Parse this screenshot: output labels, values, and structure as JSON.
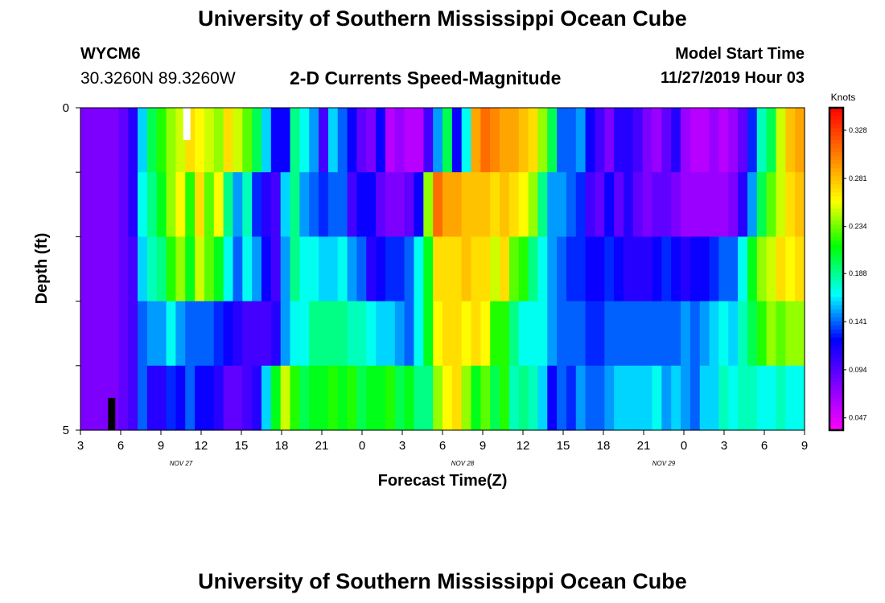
{
  "header": {
    "title": "University of Southern Mississippi Ocean Cube",
    "station_id": "WYCM6",
    "station_location": "30.3260N 89.3260W",
    "chart_title": "2-D Currents Speed-Magnitude",
    "model_start_label": "Model Start Time",
    "model_start_value": "11/27/2019 Hour 03"
  },
  "footer": {
    "title": "University of Southern Mississippi Ocean Cube"
  },
  "chart_data": {
    "type": "heatmap",
    "title": "2-D Currents Speed-Magnitude",
    "xlabel": "Forecast Time(Z)",
    "ylabel": "Depth (ft)",
    "x_tick_labels": [
      "3",
      "6",
      "9",
      "12",
      "15",
      "18",
      "21",
      "0",
      "3",
      "6",
      "9",
      "12",
      "15",
      "18",
      "21",
      "0",
      "3",
      "6",
      "9"
    ],
    "date_labels": [
      {
        "label": "NOV 27",
        "at_tick": 2.5
      },
      {
        "label": "NOV 28",
        "at_tick": 9.5
      },
      {
        "label": "NOV 29",
        "at_tick": 14.5
      }
    ],
    "y_tick_labels": [
      "0",
      "5"
    ],
    "ylim": [
      0,
      5
    ],
    "xlim_hours": [
      0,
      54
    ],
    "colorbar": {
      "title": "Knots",
      "ticks": [
        "0.328",
        "0.281",
        "0.234",
        "0.188",
        "0.141",
        "0.094",
        "0.047"
      ],
      "range": [
        0.035,
        0.35
      ]
    },
    "depth_rows": 5,
    "time_step_hours": 1,
    "rows": [
      [
        0.08,
        0.08,
        0.08,
        0.08,
        0.09,
        0.11,
        0.16,
        0.2,
        0.22,
        0.24,
        0.25,
        0.27,
        0.26,
        0.25,
        0.24,
        0.27,
        0.25,
        0.23,
        0.2,
        0.16,
        0.12,
        0.12,
        0.19,
        0.17,
        0.15,
        0.1,
        0.16,
        0.14,
        0.12,
        0.09,
        0.08,
        0.12,
        0.06,
        0.07,
        0.06,
        0.06,
        0.1,
        0.15,
        0.2,
        0.12,
        0.17,
        0.29,
        0.31,
        0.3,
        0.29,
        0.29,
        0.28,
        0.27,
        0.24,
        0.2,
        0.14,
        0.14,
        0.15,
        0.12,
        0.1,
        0.08,
        0.11,
        0.11,
        0.1,
        0.08,
        0.07,
        0.09,
        0.11,
        0.07,
        0.06,
        0.06,
        0.07,
        0.06,
        0.07,
        0.09,
        0.13,
        0.18,
        0.2,
        0.25,
        0.28,
        0.29
      ],
      [
        0.08,
        0.08,
        0.08,
        0.08,
        0.09,
        0.11,
        0.17,
        0.19,
        0.21,
        0.24,
        0.26,
        0.22,
        0.27,
        0.23,
        0.26,
        0.19,
        0.15,
        0.18,
        0.13,
        0.11,
        0.1,
        0.16,
        0.19,
        0.15,
        0.14,
        0.13,
        0.14,
        0.14,
        0.1,
        0.12,
        0.12,
        0.09,
        0.08,
        0.08,
        0.09,
        0.12,
        0.24,
        0.31,
        0.29,
        0.29,
        0.28,
        0.28,
        0.28,
        0.27,
        0.28,
        0.27,
        0.26,
        0.24,
        0.19,
        0.15,
        0.15,
        0.14,
        0.13,
        0.1,
        0.09,
        0.12,
        0.09,
        0.11,
        0.09,
        0.08,
        0.09,
        0.09,
        0.08,
        0.07,
        0.07,
        0.07,
        0.07,
        0.07,
        0.08,
        0.11,
        0.15,
        0.2,
        0.23,
        0.25,
        0.27,
        0.28
      ],
      [
        0.08,
        0.08,
        0.08,
        0.08,
        0.09,
        0.1,
        0.16,
        0.18,
        0.19,
        0.22,
        0.24,
        0.21,
        0.25,
        0.23,
        0.21,
        0.17,
        0.14,
        0.17,
        0.15,
        0.12,
        0.1,
        0.15,
        0.19,
        0.17,
        0.17,
        0.16,
        0.16,
        0.17,
        0.15,
        0.14,
        0.11,
        0.12,
        0.13,
        0.13,
        0.14,
        0.17,
        0.21,
        0.27,
        0.27,
        0.27,
        0.28,
        0.27,
        0.27,
        0.25,
        0.27,
        0.23,
        0.22,
        0.19,
        0.17,
        0.15,
        0.14,
        0.13,
        0.13,
        0.12,
        0.12,
        0.13,
        0.12,
        0.11,
        0.11,
        0.11,
        0.12,
        0.13,
        0.12,
        0.11,
        0.12,
        0.12,
        0.13,
        0.14,
        0.14,
        0.17,
        0.21,
        0.24,
        0.25,
        0.27,
        0.26,
        0.27
      ],
      [
        0.08,
        0.08,
        0.08,
        0.08,
        0.09,
        0.1,
        0.14,
        0.15,
        0.15,
        0.17,
        0.15,
        0.14,
        0.14,
        0.14,
        0.13,
        0.12,
        0.11,
        0.1,
        0.1,
        0.1,
        0.11,
        0.15,
        0.17,
        0.17,
        0.19,
        0.19,
        0.19,
        0.19,
        0.18,
        0.18,
        0.17,
        0.16,
        0.16,
        0.15,
        0.14,
        0.17,
        0.21,
        0.26,
        0.27,
        0.27,
        0.26,
        0.27,
        0.26,
        0.22,
        0.22,
        0.19,
        0.17,
        0.17,
        0.17,
        0.15,
        0.14,
        0.14,
        0.14,
        0.13,
        0.13,
        0.14,
        0.14,
        0.14,
        0.14,
        0.14,
        0.14,
        0.14,
        0.14,
        0.15,
        0.14,
        0.15,
        0.16,
        0.17,
        0.16,
        0.18,
        0.2,
        0.22,
        0.24,
        0.23,
        0.24,
        0.24
      ],
      [
        0.08,
        0.08,
        0.08,
        0.08,
        0.09,
        0.1,
        0.14,
        0.11,
        0.11,
        0.13,
        0.12,
        0.14,
        0.12,
        0.12,
        0.11,
        0.09,
        0.09,
        0.1,
        0.11,
        0.16,
        0.21,
        0.25,
        0.22,
        0.2,
        0.21,
        0.21,
        0.22,
        0.21,
        0.22,
        0.2,
        0.21,
        0.21,
        0.22,
        0.2,
        0.21,
        0.19,
        0.19,
        0.24,
        0.26,
        0.27,
        0.24,
        0.21,
        0.23,
        0.2,
        0.22,
        0.18,
        0.19,
        0.18,
        0.16,
        0.12,
        0.14,
        0.13,
        0.15,
        0.14,
        0.14,
        0.15,
        0.16,
        0.16,
        0.16,
        0.16,
        0.17,
        0.15,
        0.16,
        0.15,
        0.14,
        0.16,
        0.16,
        0.18,
        0.17,
        0.18,
        0.18,
        0.17,
        0.17,
        0.18,
        0.17,
        0.17
      ]
    ],
    "markers": [
      {
        "color": "#ffffff",
        "hour": 7.9,
        "depth_top": 0.0,
        "depth_bottom": 0.5
      },
      {
        "color": "#000000",
        "hour": 2.3,
        "depth_top": 4.5,
        "depth_bottom": 5.0
      }
    ]
  }
}
